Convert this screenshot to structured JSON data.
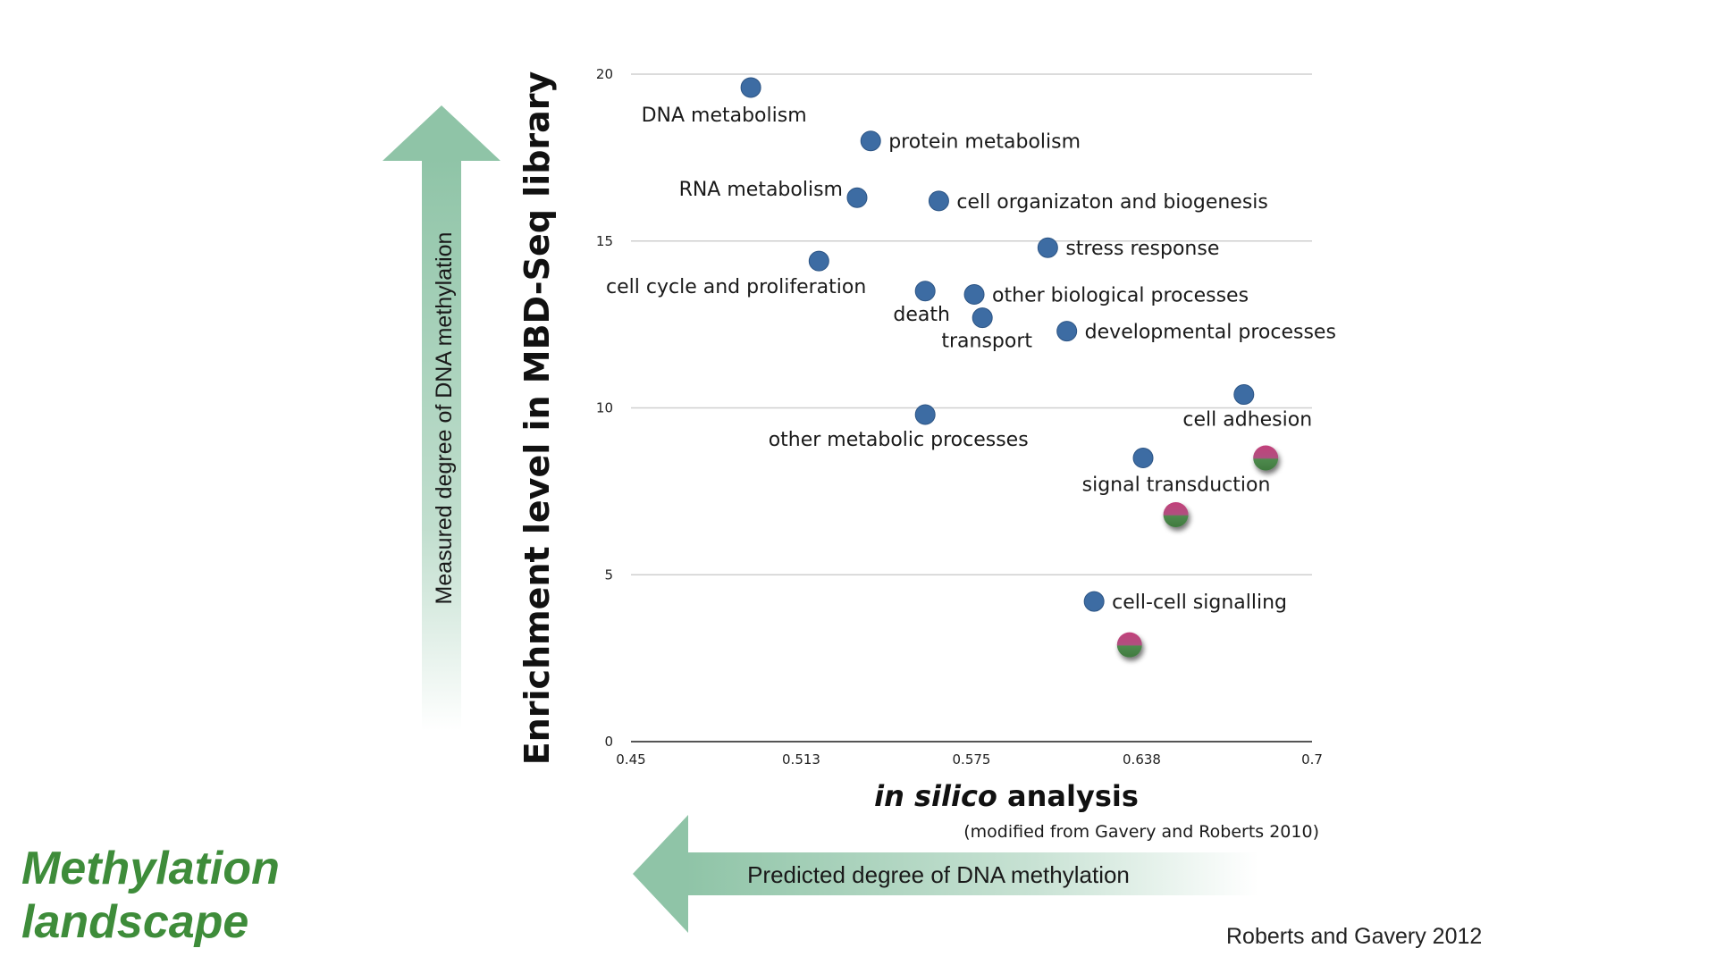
{
  "slide": {
    "title_line1": "Methylation",
    "title_line2": "landscape",
    "credit": "Roberts and Gavery 2012"
  },
  "arrows": {
    "vertical_label": "Measured degree of DNA methylation",
    "horizontal_label": "Predicted degree of DNA methylation",
    "color": "#8fc4a7"
  },
  "chart_data": {
    "type": "scatter",
    "title": "",
    "xlabel_italic": "in silico",
    "xlabel_rest": " analysis",
    "ylabel": "Enrichment level in MBD-Seq library",
    "source_note": "(modified from Gavery and Roberts 2010)",
    "xlim": [
      0.45,
      0.7
    ],
    "ylim": [
      0,
      20
    ],
    "x_ticks": [
      {
        "value": 0.45,
        "label": "0.45"
      },
      {
        "value": 0.5125,
        "label": "0.513"
      },
      {
        "value": 0.575,
        "label": "0.575"
      },
      {
        "value": 0.6375,
        "label": "0.638"
      },
      {
        "value": 0.7,
        "label": "0.7"
      }
    ],
    "y_ticks": [
      {
        "value": 0,
        "label": "0"
      },
      {
        "value": 5,
        "label": "5"
      },
      {
        "value": 10,
        "label": "10"
      },
      {
        "value": 15,
        "label": "15"
      },
      {
        "value": 20,
        "label": "20"
      }
    ],
    "grid": true,
    "colors": {
      "point": "#3d6ca3",
      "highlight_top": "#c2407a",
      "highlight_bottom": "#4f8a4e",
      "gridline": "#cfcfcf"
    },
    "points": [
      {
        "label": "DNA metabolism",
        "x": 0.494,
        "y": 19.6,
        "label_pos": "below"
      },
      {
        "label": "protein metabolism",
        "x": 0.538,
        "y": 18.0,
        "label_pos": "right"
      },
      {
        "label": "RNA metabolism",
        "x": 0.533,
        "y": 16.3,
        "label_pos": "left"
      },
      {
        "label": "cell organizaton and biogenesis",
        "x": 0.563,
        "y": 16.2,
        "label_pos": "right"
      },
      {
        "label": "stress response",
        "x": 0.603,
        "y": 14.8,
        "label_pos": "right"
      },
      {
        "label": "cell cycle and proliferation",
        "x": 0.519,
        "y": 14.4,
        "label_pos": "below-left"
      },
      {
        "label": "death",
        "x": 0.558,
        "y": 13.5,
        "label_pos": "below"
      },
      {
        "label": "other biological processes",
        "x": 0.576,
        "y": 13.4,
        "label_pos": "right"
      },
      {
        "label": "transport",
        "x": 0.579,
        "y": 12.7,
        "label_pos": "below"
      },
      {
        "label": "developmental processes",
        "x": 0.61,
        "y": 12.3,
        "label_pos": "right"
      },
      {
        "label": "cell adhesion",
        "x": 0.675,
        "y": 10.4,
        "label_pos": "below"
      },
      {
        "label": "other metabolic processes",
        "x": 0.558,
        "y": 9.8,
        "label_pos": "below"
      },
      {
        "label": "signal transduction",
        "x": 0.638,
        "y": 8.5,
        "label_pos": "below"
      },
      {
        "label": "cell-cell signalling",
        "x": 0.62,
        "y": 4.2,
        "label_pos": "right"
      }
    ],
    "highlight_points": [
      {
        "x": 0.683,
        "y": 8.5
      },
      {
        "x": 0.65,
        "y": 6.8
      },
      {
        "x": 0.633,
        "y": 2.9
      }
    ]
  }
}
